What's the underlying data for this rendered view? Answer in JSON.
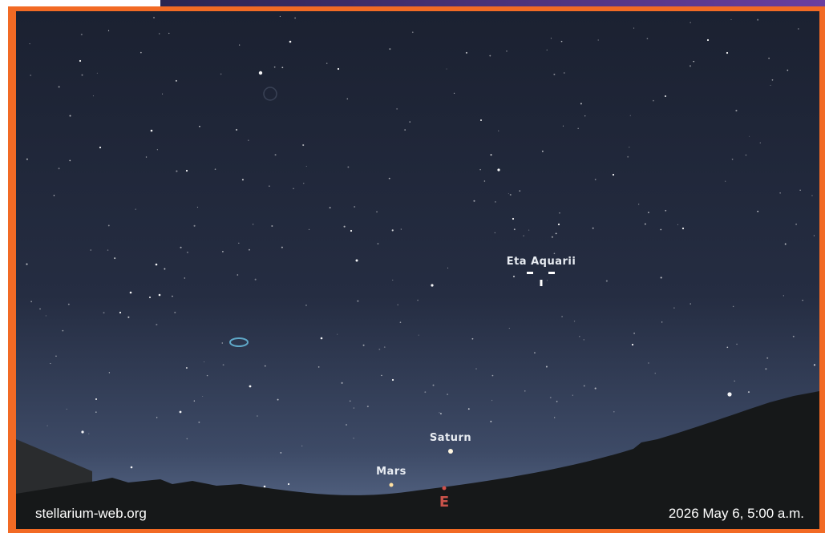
{
  "sky_labels": {
    "star": "Eta Aquarii",
    "planet_1": "Saturn",
    "planet_2": "Mars",
    "compass": "E"
  },
  "footer": {
    "site": "stellarium-web.org",
    "datetime": "2026 May 6, 5:00 a.m."
  }
}
